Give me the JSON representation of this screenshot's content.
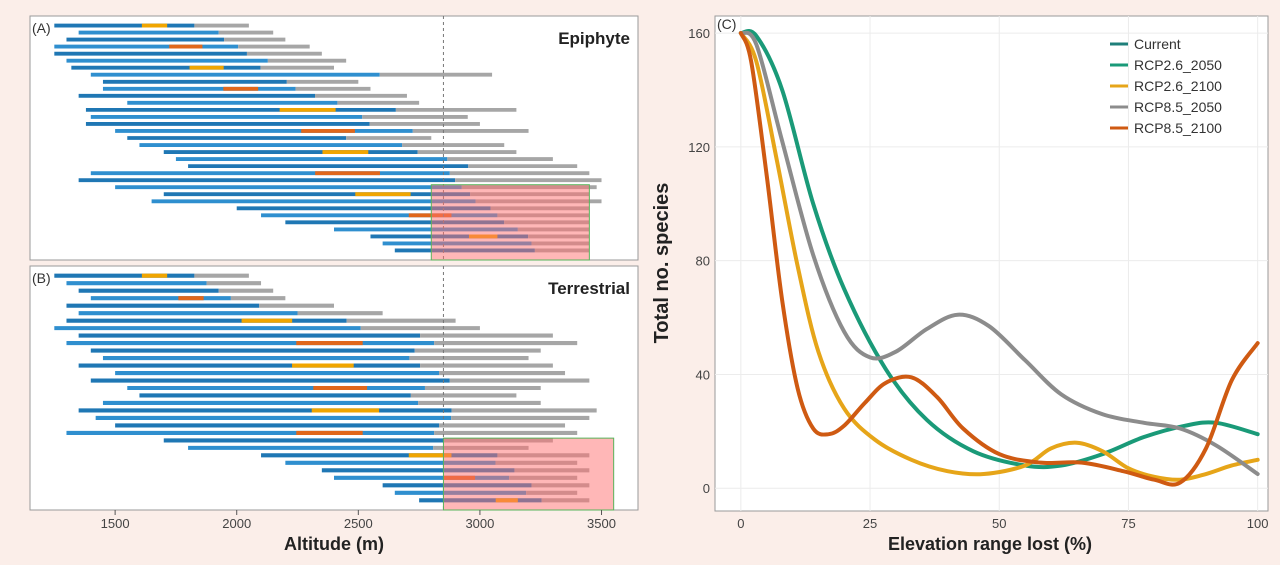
{
  "chart_data": [
    {
      "type": "range-bars",
      "panel_label": "(A)",
      "title": "Epiphyte",
      "xlabel": "Altitude (m)",
      "xlim": [
        1150,
        3650
      ],
      "xticks": [
        1500,
        2000,
        2500,
        3000,
        3500
      ],
      "reference_line_x": 2850,
      "highlight_region": {
        "x": [
          2800,
          3450
        ],
        "rows_from_bottom": 9
      },
      "series": [
        {
          "name": "Current",
          "color": "#1f77b4"
        },
        {
          "name": "RCP2.6_2050",
          "color": "#2f8fcf"
        },
        {
          "name": "RCP2.6_2100",
          "color": "#f0a500"
        },
        {
          "name": "RCP8.5_2050",
          "color": "#e0671b"
        },
        {
          "name": "RCP8.5_2100",
          "color": "#a6a6a6"
        }
      ],
      "ranges": [
        [
          1250,
          2050
        ],
        [
          1350,
          2150
        ],
        [
          1300,
          2200
        ],
        [
          1250,
          2300
        ],
        [
          1250,
          2350
        ],
        [
          1300,
          2450
        ],
        [
          1320,
          2400
        ],
        [
          1400,
          3050
        ],
        [
          1450,
          2500
        ],
        [
          1450,
          2550
        ],
        [
          1350,
          2700
        ],
        [
          1550,
          2750
        ],
        [
          1380,
          3150
        ],
        [
          1400,
          2950
        ],
        [
          1380,
          3000
        ],
        [
          1500,
          3200
        ],
        [
          1550,
          2800
        ],
        [
          1600,
          3100
        ],
        [
          1700,
          3150
        ],
        [
          1750,
          3300
        ],
        [
          1800,
          3400
        ],
        [
          1400,
          3450
        ],
        [
          1350,
          3500
        ],
        [
          1500,
          3480
        ],
        [
          1700,
          3450
        ],
        [
          1650,
          3500
        ],
        [
          2000,
          3450
        ],
        [
          2100,
          3450
        ],
        [
          2200,
          3450
        ],
        [
          2400,
          3450
        ],
        [
          2550,
          3450
        ],
        [
          2600,
          3450
        ],
        [
          2650,
          3450
        ]
      ]
    },
    {
      "type": "range-bars",
      "panel_label": "(B)",
      "title": "Terrestrial",
      "xlabel": "Altitude (m)",
      "xlim": [
        1150,
        3650
      ],
      "xticks": [
        1500,
        2000,
        2500,
        3000,
        3500
      ],
      "reference_line_x": 2850,
      "highlight_region": {
        "x": [
          2850,
          3550
        ],
        "rows_from_bottom": 8
      },
      "ranges": [
        [
          1250,
          2050
        ],
        [
          1300,
          2100
        ],
        [
          1350,
          2150
        ],
        [
          1400,
          2200
        ],
        [
          1300,
          2400
        ],
        [
          1350,
          2600
        ],
        [
          1300,
          2900
        ],
        [
          1250,
          3000
        ],
        [
          1350,
          3300
        ],
        [
          1300,
          3400
        ],
        [
          1400,
          3250
        ],
        [
          1450,
          3200
        ],
        [
          1350,
          3300
        ],
        [
          1500,
          3350
        ],
        [
          1400,
          3450
        ],
        [
          1550,
          3250
        ],
        [
          1600,
          3150
        ],
        [
          1450,
          3250
        ],
        [
          1350,
          3480
        ],
        [
          1420,
          3450
        ],
        [
          1500,
          3350
        ],
        [
          1300,
          3400
        ],
        [
          1700,
          3300
        ],
        [
          1800,
          3200
        ],
        [
          2100,
          3450
        ],
        [
          2200,
          3400
        ],
        [
          2350,
          3450
        ],
        [
          2400,
          3400
        ],
        [
          2600,
          3450
        ],
        [
          2650,
          3400
        ],
        [
          2750,
          3450
        ]
      ]
    },
    {
      "type": "line",
      "panel_label": "(C)",
      "xlabel": "Elevation range lost (%)",
      "ylabel": "Total no. species",
      "xlim": [
        -5,
        102
      ],
      "ylim": [
        -8,
        166
      ],
      "xticks": [
        0,
        25,
        50,
        75,
        100
      ],
      "yticks": [
        0,
        40,
        80,
        120,
        160
      ],
      "grid": true,
      "legend": "top-right",
      "series": [
        {
          "name": "Current",
          "color": "#1f7f7a",
          "x": [
            0,
            100
          ],
          "y": [
            160,
            20
          ]
        },
        {
          "name": "RCP2.6_2050",
          "color": "#1a9a78",
          "x": [
            0,
            3,
            8,
            14,
            20,
            28,
            36,
            45,
            55,
            62,
            70,
            78,
            86,
            92,
            100
          ],
          "y": [
            160,
            159,
            140,
            100,
            70,
            42,
            24,
            13,
            8,
            8,
            12,
            18,
            22,
            23,
            19
          ]
        },
        {
          "name": "RCP2.6_2100",
          "color": "#e6a519",
          "x": [
            0,
            3,
            7,
            11,
            15,
            20,
            26,
            33,
            40,
            47,
            55,
            60,
            65,
            70,
            75,
            80,
            85,
            90,
            95,
            100
          ],
          "y": [
            160,
            150,
            115,
            78,
            48,
            28,
            17,
            10,
            6,
            5,
            8,
            14,
            16,
            13,
            7,
            4,
            3,
            5,
            8,
            10
          ]
        },
        {
          "name": "RCP8.5_2050",
          "color": "#8c8c8c",
          "x": [
            0,
            3,
            8,
            14,
            20,
            25,
            30,
            36,
            42,
            48,
            55,
            62,
            70,
            78,
            85,
            92,
            100
          ],
          "y": [
            160,
            156,
            122,
            82,
            55,
            46,
            48,
            56,
            61,
            57,
            45,
            33,
            26,
            23,
            21,
            15,
            5
          ]
        },
        {
          "name": "RCP8.5_2100",
          "color": "#cf5a12",
          "x": [
            0,
            2,
            5,
            8,
            11,
            14,
            17,
            20,
            24,
            28,
            33,
            38,
            43,
            50,
            58,
            66,
            74,
            80,
            85,
            90,
            95,
            100
          ],
          "y": [
            160,
            150,
            110,
            66,
            35,
            21,
            19,
            22,
            30,
            37,
            39,
            32,
            21,
            12,
            9,
            9,
            6,
            3,
            2,
            14,
            38,
            51
          ]
        }
      ]
    }
  ]
}
